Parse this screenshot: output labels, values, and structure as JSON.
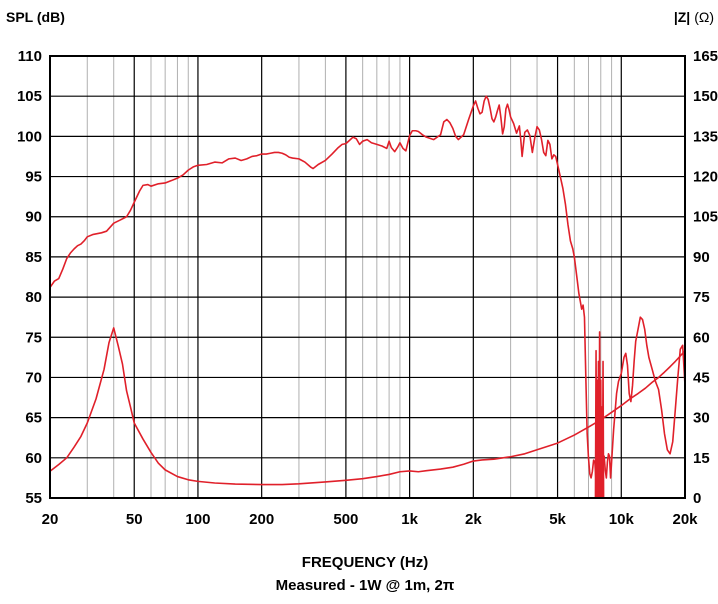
{
  "chart_data": {
    "type": "line",
    "title": "",
    "ylabel_left": "SPL (dB)",
    "ylabel_right_bold": "|Z|",
    "ylabel_right_unit": "(Ω)",
    "xlabel": "FREQUENCY (Hz)",
    "subtitle": "Measured - 1W @ 1m, 2π",
    "x_scale": "log",
    "xlim": [
      20,
      20000
    ],
    "ylim_left": [
      55,
      110
    ],
    "ylim_right": [
      0,
      165
    ],
    "grid": true,
    "x_ticks": [
      {
        "value": 20,
        "label": "20"
      },
      {
        "value": 50,
        "label": "50"
      },
      {
        "value": 100,
        "label": "100"
      },
      {
        "value": 200,
        "label": "200"
      },
      {
        "value": 500,
        "label": "500"
      },
      {
        "value": 1000,
        "label": "1k"
      },
      {
        "value": 2000,
        "label": "2k"
      },
      {
        "value": 5000,
        "label": "5k"
      },
      {
        "value": 10000,
        "label": "10k"
      },
      {
        "value": 20000,
        "label": "20k"
      }
    ],
    "y_ticks_left": [
      {
        "value": 110,
        "label": "110"
      },
      {
        "value": 105,
        "label": "105"
      },
      {
        "value": 100,
        "label": "100"
      },
      {
        "value": 95,
        "label": "95"
      },
      {
        "value": 90,
        "label": "90"
      },
      {
        "value": 85,
        "label": "85"
      },
      {
        "value": 80,
        "label": "80"
      },
      {
        "value": 75,
        "label": "75"
      },
      {
        "value": 70,
        "label": "70"
      },
      {
        "value": 65,
        "label": "65"
      },
      {
        "value": 60,
        "label": "60"
      },
      {
        "value": 55,
        "label": "55"
      }
    ],
    "y_ticks_right": [
      {
        "value": 165,
        "label": "165"
      },
      {
        "value": 150,
        "label": "150"
      },
      {
        "value": 135,
        "label": "135"
      },
      {
        "value": 120,
        "label": "120"
      },
      {
        "value": 105,
        "label": "105"
      },
      {
        "value": 90,
        "label": "90"
      },
      {
        "value": 75,
        "label": "75"
      },
      {
        "value": 60,
        "label": "60"
      },
      {
        "value": 45,
        "label": "45"
      },
      {
        "value": 30,
        "label": "30"
      },
      {
        "value": 15,
        "label": "15"
      },
      {
        "value": 0,
        "label": "0"
      }
    ],
    "series": [
      {
        "axis": "left",
        "color": "#e0202a",
        "points": [
          [
            20,
            81.2
          ],
          [
            21,
            82.0
          ],
          [
            22,
            82.3
          ],
          [
            23,
            83.5
          ],
          [
            24,
            84.8
          ],
          [
            25,
            85.5
          ],
          [
            26,
            86.0
          ],
          [
            27,
            86.4
          ],
          [
            28,
            86.6
          ],
          [
            29,
            87.0
          ],
          [
            30,
            87.5
          ],
          [
            32,
            87.8
          ],
          [
            35,
            88.0
          ],
          [
            37,
            88.2
          ],
          [
            40,
            89.2
          ],
          [
            43,
            89.6
          ],
          [
            46,
            90.0
          ],
          [
            48,
            90.8
          ],
          [
            50,
            91.8
          ],
          [
            53,
            93.2
          ],
          [
            55,
            93.9
          ],
          [
            58,
            94.0
          ],
          [
            60,
            93.8
          ],
          [
            65,
            94.1
          ],
          [
            70,
            94.2
          ],
          [
            75,
            94.5
          ],
          [
            80,
            94.8
          ],
          [
            85,
            95.2
          ],
          [
            90,
            95.8
          ],
          [
            95,
            96.2
          ],
          [
            100,
            96.4
          ],
          [
            110,
            96.5
          ],
          [
            120,
            96.8
          ],
          [
            130,
            96.7
          ],
          [
            140,
            97.2
          ],
          [
            150,
            97.3
          ],
          [
            160,
            97.0
          ],
          [
            170,
            97.2
          ],
          [
            180,
            97.5
          ],
          [
            190,
            97.6
          ],
          [
            200,
            97.8
          ],
          [
            210,
            97.8
          ],
          [
            220,
            97.9
          ],
          [
            230,
            98.0
          ],
          [
            240,
            98.0
          ],
          [
            250,
            97.9
          ],
          [
            260,
            97.7
          ],
          [
            270,
            97.4
          ],
          [
            280,
            97.3
          ],
          [
            300,
            97.2
          ],
          [
            320,
            96.8
          ],
          [
            340,
            96.2
          ],
          [
            350,
            96.0
          ],
          [
            370,
            96.5
          ],
          [
            400,
            97.0
          ],
          [
            430,
            97.8
          ],
          [
            460,
            98.6
          ],
          [
            480,
            99.0
          ],
          [
            500,
            99.1
          ],
          [
            520,
            99.5
          ],
          [
            540,
            99.9
          ],
          [
            560,
            99.7
          ],
          [
            580,
            99.0
          ],
          [
            600,
            99.4
          ],
          [
            630,
            99.6
          ],
          [
            660,
            99.2
          ],
          [
            700,
            99.0
          ],
          [
            740,
            98.8
          ],
          [
            780,
            98.5
          ],
          [
            800,
            99.4
          ],
          [
            820,
            98.6
          ],
          [
            850,
            98.1
          ],
          [
            880,
            98.7
          ],
          [
            900,
            99.2
          ],
          [
            930,
            98.5
          ],
          [
            960,
            98.2
          ],
          [
            1000,
            100.1
          ],
          [
            1030,
            100.7
          ],
          [
            1070,
            100.7
          ],
          [
            1100,
            100.6
          ],
          [
            1150,
            100.2
          ],
          [
            1200,
            99.9
          ],
          [
            1300,
            99.6
          ],
          [
            1400,
            100.2
          ],
          [
            1450,
            101.8
          ],
          [
            1500,
            102.1
          ],
          [
            1550,
            101.7
          ],
          [
            1600,
            101.0
          ],
          [
            1650,
            100.0
          ],
          [
            1700,
            99.6
          ],
          [
            1800,
            100.2
          ],
          [
            1900,
            102.1
          ],
          [
            2000,
            103.8
          ],
          [
            2050,
            104.4
          ],
          [
            2100,
            103.5
          ],
          [
            2150,
            102.8
          ],
          [
            2200,
            103.0
          ],
          [
            2250,
            104.4
          ],
          [
            2300,
            105.0
          ],
          [
            2350,
            104.6
          ],
          [
            2400,
            103.5
          ],
          [
            2450,
            102.2
          ],
          [
            2500,
            101.8
          ],
          [
            2550,
            102.4
          ],
          [
            2600,
            103.2
          ],
          [
            2650,
            103.9
          ],
          [
            2700,
            102.3
          ],
          [
            2750,
            100.3
          ],
          [
            2800,
            101.2
          ],
          [
            2850,
            103.4
          ],
          [
            2900,
            104.0
          ],
          [
            2950,
            103.3
          ],
          [
            3000,
            102.4
          ],
          [
            3100,
            101.6
          ],
          [
            3200,
            100.4
          ],
          [
            3300,
            101.3
          ],
          [
            3350,
            99.6
          ],
          [
            3400,
            97.5
          ],
          [
            3500,
            100.5
          ],
          [
            3600,
            100.8
          ],
          [
            3700,
            100.1
          ],
          [
            3800,
            98.0
          ],
          [
            3900,
            99.8
          ],
          [
            4000,
            101.2
          ],
          [
            4100,
            100.8
          ],
          [
            4200,
            99.6
          ],
          [
            4300,
            98.0
          ],
          [
            4400,
            97.6
          ],
          [
            4500,
            99.5
          ],
          [
            4600,
            99.0
          ],
          [
            4700,
            97.2
          ],
          [
            4800,
            97.7
          ],
          [
            4900,
            97.5
          ],
          [
            5000,
            96.5
          ],
          [
            5150,
            95.0
          ],
          [
            5300,
            93.5
          ],
          [
            5450,
            91.5
          ],
          [
            5600,
            89.0
          ],
          [
            5750,
            87.0
          ],
          [
            5900,
            86.0
          ],
          [
            6000,
            85.0
          ],
          [
            6100,
            83.5
          ],
          [
            6200,
            82.0
          ],
          [
            6300,
            80.5
          ],
          [
            6400,
            79.5
          ],
          [
            6500,
            78.5
          ],
          [
            6600,
            79.0
          ],
          [
            6700,
            77.5
          ],
          [
            6800,
            70.0
          ],
          [
            6900,
            63.0
          ],
          [
            7000,
            60.0
          ],
          [
            7100,
            58.0
          ],
          [
            7200,
            57.5
          ],
          [
            7300,
            58.3
          ],
          [
            7400,
            59.7
          ],
          [
            7500,
            59.5
          ],
          [
            7600,
            57.0
          ],
          [
            7700,
            56.5
          ],
          [
            7800,
            59.0
          ],
          [
            7900,
            60.3
          ],
          [
            8000,
            60.0
          ],
          [
            8100,
            58.0
          ],
          [
            8200,
            59.5
          ],
          [
            8300,
            60.2
          ],
          [
            8400,
            58.5
          ],
          [
            8500,
            57.5
          ],
          [
            8600,
            59.5
          ],
          [
            8700,
            60.5
          ],
          [
            8800,
            60.2
          ],
          [
            8900,
            57.5
          ],
          [
            9000,
            59.5
          ],
          [
            9100,
            61.5
          ],
          [
            9200,
            63.5
          ],
          [
            9300,
            65.0
          ],
          [
            9400,
            66.5
          ],
          [
            9500,
            68.0
          ],
          [
            9700,
            69.5
          ],
          [
            10000,
            70.5
          ],
          [
            10300,
            72.5
          ],
          [
            10500,
            73.0
          ],
          [
            10700,
            71.5
          ],
          [
            10900,
            68.0
          ],
          [
            11100,
            67.0
          ],
          [
            11300,
            69.0
          ],
          [
            11500,
            72.0
          ],
          [
            11700,
            74.5
          ],
          [
            12000,
            76.0
          ],
          [
            12300,
            77.5
          ],
          [
            12600,
            77.2
          ],
          [
            12900,
            76.0
          ],
          [
            13200,
            74.0
          ],
          [
            13500,
            72.5
          ],
          [
            14000,
            71.0
          ],
          [
            14500,
            69.5
          ],
          [
            15000,
            68.5
          ],
          [
            15500,
            66.0
          ],
          [
            16000,
            63.0
          ],
          [
            16500,
            61.0
          ],
          [
            17000,
            60.5
          ],
          [
            17500,
            62.0
          ],
          [
            18000,
            66.0
          ],
          [
            18500,
            70.0
          ],
          [
            19000,
            73.5
          ],
          [
            19500,
            74.0
          ],
          [
            20000,
            69.0
          ]
        ]
      },
      {
        "axis": "right",
        "color": "#e0202a",
        "points": [
          [
            20,
            10.0
          ],
          [
            22,
            12.5
          ],
          [
            24,
            15.0
          ],
          [
            26,
            19.0
          ],
          [
            28,
            23.0
          ],
          [
            30,
            28.0
          ],
          [
            33,
            37.0
          ],
          [
            36,
            48.0
          ],
          [
            38,
            58.0
          ],
          [
            40,
            63.5
          ],
          [
            42,
            56.8
          ],
          [
            44,
            50.0
          ],
          [
            46,
            40.0
          ],
          [
            48,
            34.0
          ],
          [
            50,
            28.0
          ],
          [
            55,
            22.0
          ],
          [
            60,
            17.0
          ],
          [
            65,
            13.0
          ],
          [
            70,
            10.5
          ],
          [
            80,
            8.0
          ],
          [
            90,
            6.8
          ],
          [
            100,
            6.2
          ],
          [
            120,
            5.6
          ],
          [
            150,
            5.2
          ],
          [
            200,
            5.0
          ],
          [
            250,
            5.0
          ],
          [
            300,
            5.3
          ],
          [
            400,
            6.0
          ],
          [
            500,
            6.6
          ],
          [
            600,
            7.2
          ],
          [
            700,
            8.0
          ],
          [
            800,
            8.8
          ],
          [
            900,
            9.8
          ],
          [
            1000,
            10.1
          ],
          [
            1100,
            9.8
          ],
          [
            1200,
            10.2
          ],
          [
            1400,
            10.8
          ],
          [
            1600,
            11.5
          ],
          [
            1800,
            12.6
          ],
          [
            2000,
            13.8
          ],
          [
            2200,
            14.2
          ],
          [
            2500,
            14.5
          ],
          [
            3000,
            15.4
          ],
          [
            3500,
            16.5
          ],
          [
            4000,
            18.0
          ],
          [
            5000,
            20.5
          ],
          [
            6000,
            23.5
          ],
          [
            7000,
            26.5
          ],
          [
            8000,
            29.2
          ],
          [
            9000,
            32.0
          ],
          [
            10000,
            34.5
          ],
          [
            11000,
            37.0
          ],
          [
            12000,
            39.0
          ],
          [
            13000,
            41.0
          ],
          [
            14000,
            43.2
          ],
          [
            15000,
            45.0
          ],
          [
            16000,
            47.0
          ],
          [
            17000,
            49.0
          ],
          [
            18000,
            51.0
          ],
          [
            19000,
            53.0
          ],
          [
            20000,
            55.0
          ]
        ]
      },
      {
        "axis": "right",
        "color": "#e0202a",
        "points": [
          [
            7550,
            0.0
          ],
          [
            7600,
            55.0
          ],
          [
            7650,
            0.0
          ],
          [
            7700,
            44.0
          ],
          [
            7750,
            0.0
          ],
          [
            7800,
            51.0
          ],
          [
            7850,
            0.0
          ],
          [
            7900,
            62.0
          ],
          [
            7950,
            0.0
          ],
          [
            8000,
            44.0
          ],
          [
            8050,
            0.0
          ],
          [
            8100,
            34.0
          ],
          [
            8150,
            0.0
          ],
          [
            8200,
            51.0
          ],
          [
            8250,
            0.0
          ]
        ]
      }
    ]
  }
}
